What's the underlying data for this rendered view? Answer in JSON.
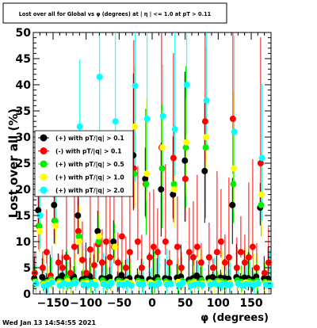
{
  "footer": {
    "timestamp": "Wed Jan 13 14:54:55 2021"
  },
  "chart_data": {
    "type": "scatter",
    "title": "Lost over all for Global vs φ (degrees) at | η | <= 1.0 at pT > 0.11",
    "xlabel": "φ (degrees)",
    "ylabel": "Lost over all (%)",
    "xlim": [
      -180,
      180
    ],
    "ylim": [
      0,
      50
    ],
    "x_ticks": [
      -150,
      -100,
      -50,
      0,
      50,
      100,
      150
    ],
    "x_tick_labels": [
      "−150",
      "−100",
      "−50",
      "0",
      "50",
      "100",
      "150"
    ],
    "y_ticks": [
      0,
      5,
      10,
      15,
      20,
      25,
      30,
      35,
      40,
      45,
      50
    ],
    "grid": false,
    "legend_position": "middle-left",
    "x": [
      -177,
      -171,
      -165,
      -159,
      -153,
      -147,
      -141,
      -135,
      -129,
      -123,
      -117,
      -111,
      -105,
      -99,
      -93,
      -87,
      -81,
      -75,
      -69,
      -63,
      -57,
      -51,
      -45,
      -39,
      -33,
      -27,
      -21,
      -15,
      -9,
      -3,
      3,
      9,
      15,
      21,
      27,
      33,
      39,
      45,
      51,
      57,
      63,
      69,
      75,
      81,
      87,
      93,
      99,
      105,
      111,
      117,
      123,
      129,
      135,
      141,
      147,
      153,
      159,
      165,
      171,
      177
    ],
    "series": [
      {
        "name": "(+) with pT/|q| > 0.1",
        "color": "#000000",
        "marker": "circle",
        "values": [
          3.0,
          16.0,
          3.2,
          2.5,
          3.0,
          17.0,
          2.8,
          3.5,
          3.0,
          2.6,
          3.3,
          15.0,
          2.7,
          3.1,
          3.4,
          2.5,
          12.0,
          3.0,
          2.9,
          3.2,
          10.0,
          2.8,
          3.6,
          2.7,
          3.0,
          26.5,
          3.1,
          3.0,
          22.0,
          2.8,
          2.6,
          3.2,
          20.0,
          3.0,
          2.9,
          19.0,
          3.1,
          3.3,
          25.5,
          2.7,
          3.0,
          3.5,
          2.9,
          23.5,
          3.0,
          3.2,
          2.8,
          3.1,
          3.0,
          2.9,
          17.0,
          3.2,
          2.8,
          3.1,
          3.0,
          2.7,
          3.3,
          16.5,
          3.0,
          2.9
        ]
      },
      {
        "name": "(-) with pT/|q| > 0.1",
        "color": "#ff0000",
        "marker": "circle",
        "values": [
          4.0,
          13.0,
          5.0,
          8.0,
          3.5,
          14.0,
          6.0,
          5.0,
          7.0,
          4.0,
          9.0,
          12.0,
          6.5,
          4.0,
          8.5,
          5.5,
          9.5,
          6.0,
          10.0,
          7.0,
          9.0,
          6.0,
          11.0,
          5.0,
          8.0,
          24.0,
          10.0,
          5.0,
          21.0,
          7.0,
          9.0,
          8.0,
          28.0,
          10.0,
          6.0,
          26.0,
          9.0,
          5.0,
          22.0,
          8.0,
          7.0,
          9.0,
          6.0,
          33.0,
          7.0,
          5.0,
          8.0,
          10.0,
          6.0,
          7.0,
          33.5,
          5.0,
          8.0,
          6.0,
          7.0,
          9.0,
          5.0,
          25.0,
          4.0,
          6.0
        ]
      },
      {
        "name": "(+) with pT/|q| > 0.5",
        "color": "#00ee00",
        "marker": "circle",
        "values": [
          2.5,
          13.0,
          2.0,
          2.3,
          2.8,
          14.0,
          2.4,
          2.2,
          3.0,
          2.1,
          2.6,
          11.0,
          2.3,
          2.5,
          2.2,
          2.4,
          10.0,
          2.6,
          2.0,
          2.3,
          9.0,
          2.5,
          2.2,
          2.4,
          2.1,
          23.0,
          2.5,
          2.3,
          21.0,
          2.2,
          2.0,
          2.6,
          24.0,
          2.4,
          2.1,
          21.0,
          2.3,
          2.5,
          28.0,
          2.2,
          2.4,
          2.0,
          2.6,
          28.0,
          2.3,
          2.1,
          2.5,
          2.4,
          2.2,
          2.0,
          21.0,
          2.6,
          2.3,
          2.1,
          2.4,
          2.2,
          2.5,
          17.0,
          2.3,
          2.1
        ]
      },
      {
        "name": "(+) with pT/|q| > 1.0",
        "color": "#ffff00",
        "marker": "circle",
        "values": [
          2.2,
          12.0,
          1.8,
          2.0,
          2.4,
          13.0,
          2.1,
          1.9,
          2.5,
          1.8,
          2.2,
          10.0,
          2.0,
          2.1,
          1.9,
          2.3,
          11.0,
          2.0,
          1.8,
          2.2,
          9.0,
          2.1,
          1.9,
          2.3,
          2.0,
          32.0,
          2.1,
          1.9,
          23.0,
          2.2,
          1.8,
          2.1,
          28.0,
          2.0,
          1.9,
          20.0,
          2.3,
          2.1,
          29.0,
          1.9,
          2.2,
          1.8,
          2.0,
          30.0,
          2.1,
          1.9,
          2.2,
          2.0,
          1.8,
          2.1,
          24.0,
          2.0,
          1.9,
          2.2,
          2.0,
          1.8,
          2.1,
          19.0,
          2.0,
          1.9
        ]
      },
      {
        "name": "(+) with pT/|q| > 2.0",
        "color": "#00ffff",
        "marker": "circle",
        "values": [
          2.0,
          15.0,
          1.5,
          1.8,
          2.2,
          20.0,
          1.6,
          2.0,
          1.7,
          1.9,
          2.1,
          32.0,
          1.8,
          1.6,
          2.0,
          1.7,
          41.5,
          1.9,
          1.6,
          2.1,
          33.0,
          1.8,
          1.7,
          2.0,
          1.6,
          39.8,
          1.9,
          1.8,
          33.5,
          1.7,
          1.6,
          2.0,
          34.0,
          1.8,
          1.9,
          31.5,
          1.7,
          2.1,
          40.0,
          1.6,
          1.8,
          1.9,
          1.7,
          37.0,
          1.8,
          2.0,
          1.6,
          1.9,
          1.7,
          1.8,
          31.0,
          2.0,
          1.6,
          1.9,
          1.8,
          1.7,
          2.0,
          26.0,
          1.8,
          1.7
        ]
      }
    ]
  }
}
